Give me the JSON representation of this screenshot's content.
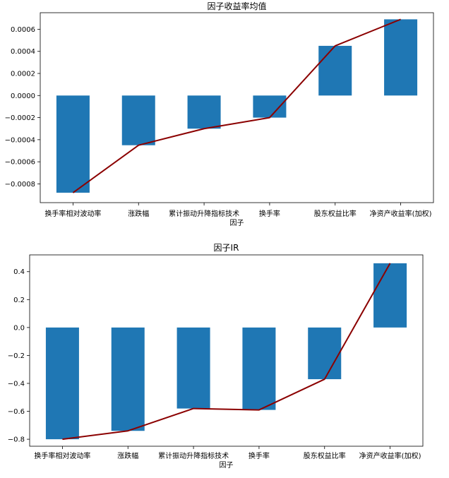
{
  "colors": {
    "bar": "#1f77b4",
    "line": "#8b0000",
    "axis": "#000000",
    "background": "#ffffff"
  },
  "chart_data": [
    {
      "type": "bar",
      "title": "因子收益率均值",
      "xlabel": "因子",
      "ylabel": "",
      "categories": [
        "换手率相对波动率",
        "涨跌幅",
        "累计振动升降指标技术",
        "换手率",
        "股东权益比率",
        "净资产收益率(加权)"
      ],
      "values": [
        -0.00088,
        -0.00045,
        -0.0003,
        -0.0002,
        0.00045,
        0.00069
      ],
      "overlay_line": [
        -0.00088,
        -0.00045,
        -0.0003,
        -0.0002,
        0.00045,
        0.00069
      ],
      "ylim": [
        -0.00097,
        0.00075
      ],
      "yticks": [
        -0.0008,
        -0.0006,
        -0.0004,
        -0.0002,
        0.0,
        0.0002,
        0.0004,
        0.0006
      ],
      "ytick_labels": [
        "−0.0008",
        "−0.0006",
        "−0.0004",
        "−0.0002",
        "0.0000",
        "0.0002",
        "0.0004",
        "0.0006"
      ],
      "grid": false,
      "legend": "none"
    },
    {
      "type": "bar",
      "title": "因子IR",
      "xlabel": "因子",
      "ylabel": "",
      "categories": [
        "换手率相对波动率",
        "涨跌幅",
        "累计振动升降指标技术",
        "换手率",
        "股东权益比率",
        "净资产收益率(加权)"
      ],
      "values": [
        -0.8,
        -0.74,
        -0.58,
        -0.59,
        -0.37,
        0.46
      ],
      "overlay_line": [
        -0.8,
        -0.74,
        -0.58,
        -0.59,
        -0.37,
        0.46
      ],
      "ylim": [
        -0.85,
        0.52
      ],
      "yticks": [
        -0.8,
        -0.6,
        -0.4,
        -0.2,
        0.0,
        0.2,
        0.4
      ],
      "ytick_labels": [
        "−0.8",
        "−0.6",
        "−0.4",
        "−0.2",
        "0.0",
        "0.2",
        "0.4"
      ],
      "grid": false,
      "legend": "none"
    }
  ]
}
